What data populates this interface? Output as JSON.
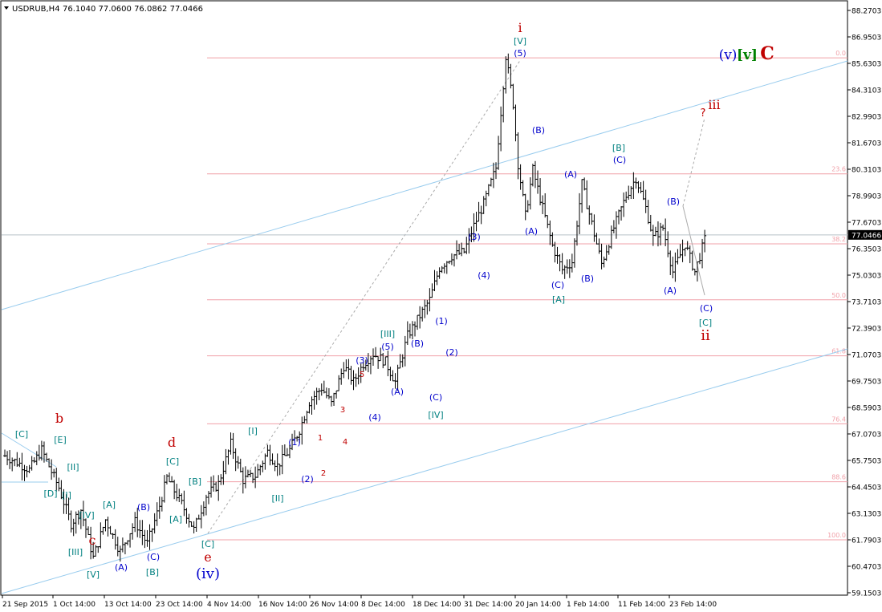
{
  "window": {
    "symbol": "USDRUB,H4",
    "ohlc": "76.1040 77.0600 76.0862 77.0466"
  },
  "chart_data": {
    "type": "candlestick",
    "symbol": "USDRUB",
    "timeframe": "H4",
    "ylim": [
      59.1,
      88.3
    ],
    "current_price": "77.0466",
    "y_ticks": [
      "88.2703",
      "86.9503",
      "85.6303",
      "84.3103",
      "82.9903",
      "81.6703",
      "80.3103",
      "78.9903",
      "77.6703",
      "76.3503",
      "75.0303",
      "73.7103",
      "72.3903",
      "71.0703",
      "69.7503",
      "68.5903",
      "67.0703",
      "65.7503",
      "64.4503",
      "63.1303",
      "61.7903",
      "60.4703",
      "59.1503"
    ],
    "x_ticks": [
      "21 Sep 2015",
      "1 Oct 14:00",
      "13 Oct 14:00",
      "23 Oct 14:00",
      "4 Nov 14:00",
      "16 Nov 14:00",
      "26 Nov 14:00",
      "8 Dec 14:00",
      "18 Dec 14:00",
      "31 Dec 14:00",
      "20 Jan 14:00",
      "1 Feb 14:00",
      "11 Feb 14:00",
      "23 Feb 14:00"
    ],
    "fibonacci_levels": [
      {
        "label": "0.0",
        "price": 85.9
      },
      {
        "label": "23.6",
        "price": 80.1
      },
      {
        "label": "38.2",
        "price": 76.6
      },
      {
        "label": "50.0",
        "price": 73.8
      },
      {
        "label": "61.8",
        "price": 71.0
      },
      {
        "label": "76.4",
        "price": 67.6
      },
      {
        "label": "88.6",
        "price": 64.7
      },
      {
        "label": "100.0",
        "price": 61.8
      }
    ],
    "price_path": [
      {
        "i": 0,
        "p": 66.0
      },
      {
        "i": 6,
        "p": 65.6
      },
      {
        "i": 10,
        "p": 65.3
      },
      {
        "i": 15,
        "p": 66.3
      },
      {
        "i": 19,
        "p": 65.2
      },
      {
        "i": 22,
        "p": 64.4
      },
      {
        "i": 27,
        "p": 62.6
      },
      {
        "i": 31,
        "p": 63.3
      },
      {
        "i": 36,
        "p": 60.9
      },
      {
        "i": 41,
        "p": 62.8
      },
      {
        "i": 47,
        "p": 61.2
      },
      {
        "i": 53,
        "p": 62.7
      },
      {
        "i": 58,
        "p": 61.6
      },
      {
        "i": 63,
        "p": 63.5
      },
      {
        "i": 66,
        "p": 64.9
      },
      {
        "i": 72,
        "p": 63.6
      },
      {
        "i": 77,
        "p": 62.3
      },
      {
        "i": 82,
        "p": 64.0
      },
      {
        "i": 87,
        "p": 64.6
      },
      {
        "i": 92,
        "p": 66.6
      },
      {
        "i": 97,
        "p": 64.8
      },
      {
        "i": 102,
        "p": 65.0
      },
      {
        "i": 107,
        "p": 66.2
      },
      {
        "i": 111,
        "p": 65.5
      },
      {
        "i": 116,
        "p": 66.3
      },
      {
        "i": 120,
        "p": 67.3
      },
      {
        "i": 124,
        "p": 68.7
      },
      {
        "i": 129,
        "p": 69.4
      },
      {
        "i": 133,
        "p": 68.6
      },
      {
        "i": 138,
        "p": 70.5
      },
      {
        "i": 142,
        "p": 69.7
      },
      {
        "i": 146,
        "p": 70.6
      },
      {
        "i": 150,
        "p": 71.1
      },
      {
        "i": 155,
        "p": 70.7
      },
      {
        "i": 159,
        "p": 69.7
      },
      {
        "i": 164,
        "p": 72.0
      },
      {
        "i": 169,
        "p": 73.0
      },
      {
        "i": 173,
        "p": 73.8
      },
      {
        "i": 177,
        "p": 75.4
      },
      {
        "i": 182,
        "p": 76.0
      },
      {
        "i": 187,
        "p": 76.2
      },
      {
        "i": 191,
        "p": 77.5
      },
      {
        "i": 195,
        "p": 78.6
      },
      {
        "i": 200,
        "p": 80.4
      },
      {
        "i": 204,
        "p": 86.0
      },
      {
        "i": 207,
        "p": 83.6
      },
      {
        "i": 209,
        "p": 80.6
      },
      {
        "i": 212,
        "p": 78.0
      },
      {
        "i": 215,
        "p": 80.3
      },
      {
        "i": 219,
        "p": 78.4
      },
      {
        "i": 223,
        "p": 76.5
      },
      {
        "i": 227,
        "p": 75.3
      },
      {
        "i": 231,
        "p": 75.7
      },
      {
        "i": 235,
        "p": 79.6
      },
      {
        "i": 239,
        "p": 77.6
      },
      {
        "i": 243,
        "p": 75.6
      },
      {
        "i": 248,
        "p": 77.4
      },
      {
        "i": 253,
        "p": 79.0
      },
      {
        "i": 257,
        "p": 79.9
      },
      {
        "i": 261,
        "p": 78.4
      },
      {
        "i": 264,
        "p": 76.9
      },
      {
        "i": 268,
        "p": 77.4
      },
      {
        "i": 272,
        "p": 75.2
      },
      {
        "i": 277,
        "p": 76.6
      },
      {
        "i": 281,
        "p": 75.2
      },
      {
        "i": 285,
        "p": 76.8
      }
    ],
    "annotations": [
      {
        "text": "[C]",
        "color": "#008080"
      },
      {
        "text": "b",
        "color": "#c00000"
      },
      {
        "text": "[E]",
        "color": "#008080"
      },
      {
        "text": "[II]",
        "color": "#008080"
      },
      {
        "text": "[I]",
        "color": "#008080"
      },
      {
        "text": "[D]",
        "color": "#008080"
      },
      {
        "text": "[IV]",
        "color": "#008080"
      },
      {
        "text": "[III]",
        "color": "#008080"
      },
      {
        "text": "c",
        "color": "#c00000"
      },
      {
        "text": "[V]",
        "color": "#008080"
      },
      {
        "text": "[A]",
        "color": "#008080"
      },
      {
        "text": "(B)",
        "color": "#0000cc"
      },
      {
        "text": "(A)",
        "color": "#0000cc"
      },
      {
        "text": "(C)",
        "color": "#0000cc"
      },
      {
        "text": "[B]",
        "color": "#008080"
      },
      {
        "text": "[C]",
        "color": "#008080"
      },
      {
        "text": "d",
        "color": "#c00000"
      },
      {
        "text": "[A]",
        "color": "#008080"
      },
      {
        "text": "[B]",
        "color": "#008080"
      },
      {
        "text": "[C]",
        "color": "#008080"
      },
      {
        "text": "e",
        "color": "#c00000"
      },
      {
        "text": "(iv)",
        "color": "#0000cc"
      },
      {
        "text": "[I]",
        "color": "#008080"
      },
      {
        "text": "[II]",
        "color": "#008080"
      },
      {
        "text": "(1)",
        "color": "#0000cc"
      },
      {
        "text": "(2)",
        "color": "#0000cc"
      },
      {
        "text": "1",
        "color": "#c00000"
      },
      {
        "text": "2",
        "color": "#c00000"
      },
      {
        "text": "3",
        "color": "#c00000"
      },
      {
        "text": "4",
        "color": "#c00000"
      },
      {
        "text": "5",
        "color": "#c00000"
      },
      {
        "text": "(3)",
        "color": "#0000cc"
      },
      {
        "text": "(4)",
        "color": "#0000cc"
      },
      {
        "text": "[III]",
        "color": "#008080"
      },
      {
        "text": "(5)",
        "color": "#0000cc"
      },
      {
        "text": "(A)",
        "color": "#0000cc"
      },
      {
        "text": "(B)",
        "color": "#0000cc"
      },
      {
        "text": "(C)",
        "color": "#0000cc"
      },
      {
        "text": "[IV]",
        "color": "#008080"
      },
      {
        "text": "(1)",
        "color": "#0000cc"
      },
      {
        "text": "(2)",
        "color": "#0000cc"
      },
      {
        "text": "(3)",
        "color": "#0000cc"
      },
      {
        "text": "(4)",
        "color": "#0000cc"
      },
      {
        "text": "i",
        "color": "#c00000"
      },
      {
        "text": "[V]",
        "color": "#008080"
      },
      {
        "text": "(5)",
        "color": "#0000cc"
      },
      {
        "text": "(B)",
        "color": "#0000cc"
      },
      {
        "text": "(A)",
        "color": "#0000cc"
      },
      {
        "text": "(A)",
        "color": "#0000cc"
      },
      {
        "text": "(C)",
        "color": "#0000cc"
      },
      {
        "text": "[A]",
        "color": "#008080"
      },
      {
        "text": "(B)",
        "color": "#0000cc"
      },
      {
        "text": "[B]",
        "color": "#008080"
      },
      {
        "text": "(C)",
        "color": "#0000cc"
      },
      {
        "text": "(B)",
        "color": "#0000cc"
      },
      {
        "text": "(A)",
        "color": "#0000cc"
      },
      {
        "text": "(C)",
        "color": "#0000cc"
      },
      {
        "text": "[C]",
        "color": "#008080"
      },
      {
        "text": "ii",
        "color": "#c00000"
      },
      {
        "text": "?",
        "color": "#c00000"
      },
      {
        "text": "iii",
        "color": "#c00000"
      },
      {
        "text": "(v)",
        "color": "#0000cc"
      },
      {
        "text": "[v]",
        "color": "#008000"
      },
      {
        "text": "C",
        "color": "#c00000"
      }
    ]
  },
  "colors": {
    "grid": "#c0c0c0",
    "fib": "#f0a0a8",
    "channel": "#99ccee",
    "candles": "#000000",
    "price_line": "#b8c0c8"
  }
}
